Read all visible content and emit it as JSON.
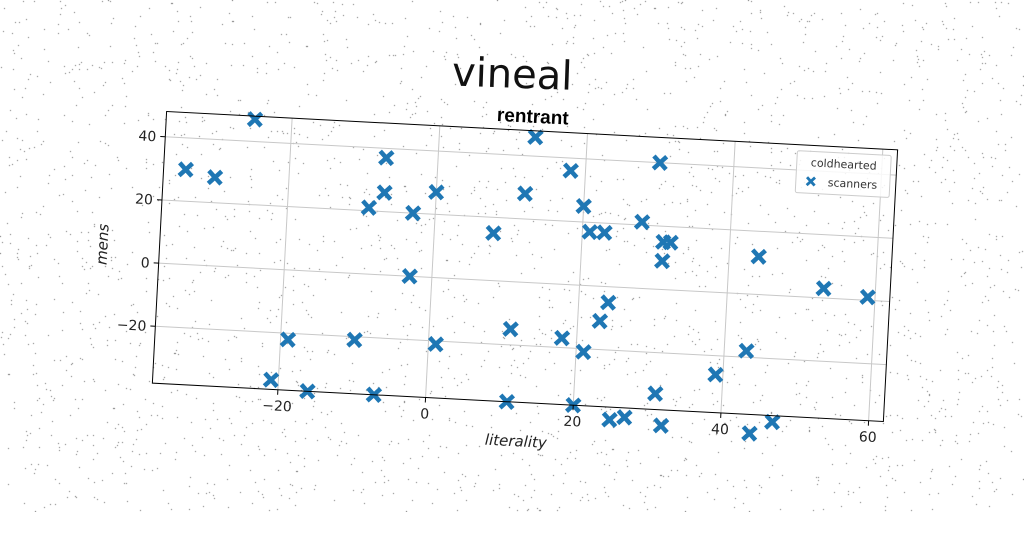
{
  "suptitle": "vineal",
  "chart_data": {
    "type": "scatter",
    "title": "rentrant",
    "xlabel": "literality",
    "ylabel": "mens",
    "xlim": [
      -37,
      62
    ],
    "ylim": [
      -38,
      48
    ],
    "xticks": [
      -20,
      0,
      20,
      40,
      60
    ],
    "yticks": [
      -20,
      0,
      20,
      40
    ],
    "xtick_labels": [
      "−20",
      "0",
      "20",
      "40",
      "60"
    ],
    "ytick_labels": [
      "−20",
      "0",
      "20",
      "40"
    ],
    "grid": true,
    "legend": {
      "title": "coldhearted",
      "placement": "top-right"
    },
    "series": [
      {
        "name": "scanners",
        "color": "#1f77b4",
        "marker": "X",
        "points": [
          [
            -34,
            30
          ],
          [
            -30,
            28
          ],
          [
            -25,
            47
          ],
          [
            -7,
            37
          ],
          [
            -7,
            26
          ],
          [
            -9,
            21
          ],
          [
            -3,
            20
          ],
          [
            0,
            27
          ],
          [
            -3,
            0
          ],
          [
            -19,
            -22
          ],
          [
            -21,
            -35
          ],
          [
            -16,
            -38
          ],
          [
            -10,
            -21
          ],
          [
            -7,
            -38
          ],
          [
            1,
            -21
          ],
          [
            8,
            15
          ],
          [
            11,
            -15
          ],
          [
            11,
            -38
          ],
          [
            12,
            28
          ],
          [
            13,
            46
          ],
          [
            18,
            36
          ],
          [
            20,
            25
          ],
          [
            21,
            17
          ],
          [
            23,
            17
          ],
          [
            28,
            21
          ],
          [
            30,
            40
          ],
          [
            31,
            15
          ],
          [
            32,
            15
          ],
          [
            31,
            9
          ],
          [
            24,
            -5
          ],
          [
            23,
            -11
          ],
          [
            18,
            -17
          ],
          [
            21,
            -21
          ],
          [
            20,
            -38
          ],
          [
            25,
            -42
          ],
          [
            27,
            -41
          ],
          [
            31,
            -33
          ],
          [
            32,
            -43
          ],
          [
            39,
            -26
          ],
          [
            43,
            -18
          ],
          [
            44,
            12
          ],
          [
            47,
            -40
          ],
          [
            44,
            -44
          ],
          [
            53,
            3
          ],
          [
            59,
            1
          ]
        ]
      }
    ]
  }
}
